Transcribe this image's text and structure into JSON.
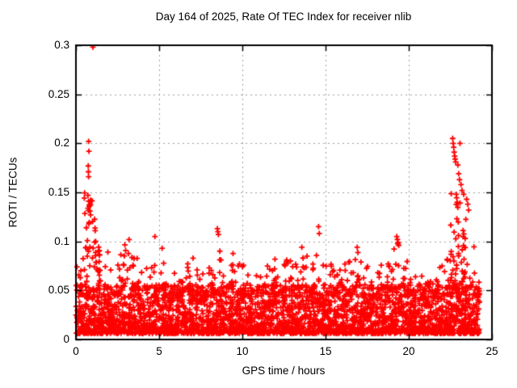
{
  "chart_data": {
    "type": "scatter",
    "title": "Day 164 of 2025, Rate Of TEC Index for receiver nlib",
    "xlabel": "GPS time / hours",
    "ylabel": "ROTI / TECUs",
    "xlim": [
      0,
      25
    ],
    "ylim": [
      0,
      0.3
    ],
    "xticks": [
      0,
      5,
      10,
      15,
      20,
      25
    ],
    "yticks": [
      0,
      0.05,
      0.1,
      0.15,
      0.2,
      0.25,
      0.3
    ],
    "xtick_labels": [
      "0",
      "5",
      "10",
      "15",
      "20",
      "25"
    ],
    "ytick_labels": [
      "0",
      "0.05",
      "0.1",
      "0.15",
      "0.2",
      "0.25",
      "0.3"
    ],
    "grid": true,
    "legend": "none",
    "marker": "plus",
    "marker_color": "#ff0000",
    "grid_color": "#9e9e9e",
    "axis_color": "#000000",
    "series_name": "ROTI",
    "data_x_range_hours": [
      0,
      24.25
    ],
    "dense_band": {
      "y_min": 0.006,
      "y_typical_top": 0.05
    },
    "envelope_bins": [
      [
        0.0,
        0.5,
        0.09
      ],
      [
        0.5,
        0.5,
        0.15
      ],
      [
        1.0,
        0.5,
        0.125
      ],
      [
        1.5,
        0.5,
        0.115
      ],
      [
        2.0,
        0.5,
        0.085
      ],
      [
        2.5,
        0.5,
        0.1
      ],
      [
        3.0,
        0.5,
        0.105
      ],
      [
        3.5,
        0.5,
        0.085
      ],
      [
        4.0,
        0.5,
        0.08
      ],
      [
        4.5,
        0.5,
        0.105
      ],
      [
        5.0,
        0.5,
        0.095
      ],
      [
        5.5,
        0.5,
        0.07
      ],
      [
        6.0,
        0.5,
        0.072
      ],
      [
        6.5,
        0.5,
        0.09
      ],
      [
        7.0,
        0.5,
        0.085
      ],
      [
        7.5,
        0.5,
        0.075
      ],
      [
        8.0,
        0.5,
        0.08
      ],
      [
        8.5,
        0.5,
        0.095
      ],
      [
        9.0,
        0.5,
        0.1
      ],
      [
        9.5,
        0.5,
        0.105
      ],
      [
        10.0,
        0.5,
        0.09
      ],
      [
        10.5,
        0.5,
        0.082
      ],
      [
        11.0,
        0.5,
        0.075
      ],
      [
        11.5,
        0.5,
        0.083
      ],
      [
        12.0,
        0.5,
        0.085
      ],
      [
        12.5,
        0.5,
        0.09
      ],
      [
        13.0,
        0.5,
        0.088
      ],
      [
        13.5,
        0.5,
        0.095
      ],
      [
        14.0,
        0.5,
        0.088
      ],
      [
        14.5,
        0.5,
        0.082
      ],
      [
        15.0,
        0.5,
        0.085
      ],
      [
        15.5,
        0.5,
        0.09
      ],
      [
        16.0,
        0.5,
        0.085
      ],
      [
        16.5,
        0.5,
        0.095
      ],
      [
        17.0,
        0.5,
        0.08
      ],
      [
        17.5,
        0.5,
        0.075
      ],
      [
        18.0,
        0.5,
        0.08
      ],
      [
        18.5,
        0.5,
        0.078
      ],
      [
        19.0,
        0.5,
        0.105
      ],
      [
        19.5,
        0.5,
        0.08
      ],
      [
        20.0,
        0.5,
        0.07
      ],
      [
        20.5,
        0.5,
        0.065
      ],
      [
        21.0,
        0.5,
        0.068
      ],
      [
        21.5,
        0.5,
        0.078
      ],
      [
        22.0,
        0.5,
        0.085
      ],
      [
        22.5,
        0.5,
        0.15
      ],
      [
        23.0,
        0.5,
        0.14
      ],
      [
        23.5,
        0.5,
        0.11
      ],
      [
        24.0,
        0.25,
        0.065
      ]
    ],
    "outlier_points": [
      [
        0.72,
        0.147
      ],
      [
        0.76,
        0.141
      ],
      [
        0.8,
        0.136
      ],
      [
        0.84,
        0.131
      ],
      [
        0.88,
        0.127
      ],
      [
        0.76,
        0.202
      ],
      [
        0.78,
        0.192
      ],
      [
        0.74,
        0.177
      ],
      [
        0.75,
        0.171
      ],
      [
        0.76,
        0.166
      ],
      [
        1.02,
        0.298
      ],
      [
        8.5,
        0.113
      ],
      [
        8.53,
        0.11
      ],
      [
        8.56,
        0.107
      ],
      [
        14.58,
        0.115
      ],
      [
        14.62,
        0.108
      ],
      [
        16.9,
        0.094
      ],
      [
        19.28,
        0.105
      ],
      [
        19.32,
        0.102
      ],
      [
        19.36,
        0.099
      ],
      [
        19.4,
        0.096
      ],
      [
        22.64,
        0.205
      ],
      [
        22.67,
        0.2
      ],
      [
        22.7,
        0.196
      ],
      [
        22.73,
        0.191
      ],
      [
        22.76,
        0.187
      ],
      [
        22.79,
        0.184
      ],
      [
        22.82,
        0.181
      ],
      [
        23.08,
        0.2
      ],
      [
        22.95,
        0.178
      ],
      [
        23.0,
        0.169
      ],
      [
        23.05,
        0.163
      ],
      [
        23.14,
        0.158
      ],
      [
        23.2,
        0.152
      ],
      [
        23.3,
        0.148
      ],
      [
        23.48,
        0.143
      ],
      [
        23.55,
        0.138
      ],
      [
        23.6,
        0.132
      ]
    ]
  }
}
